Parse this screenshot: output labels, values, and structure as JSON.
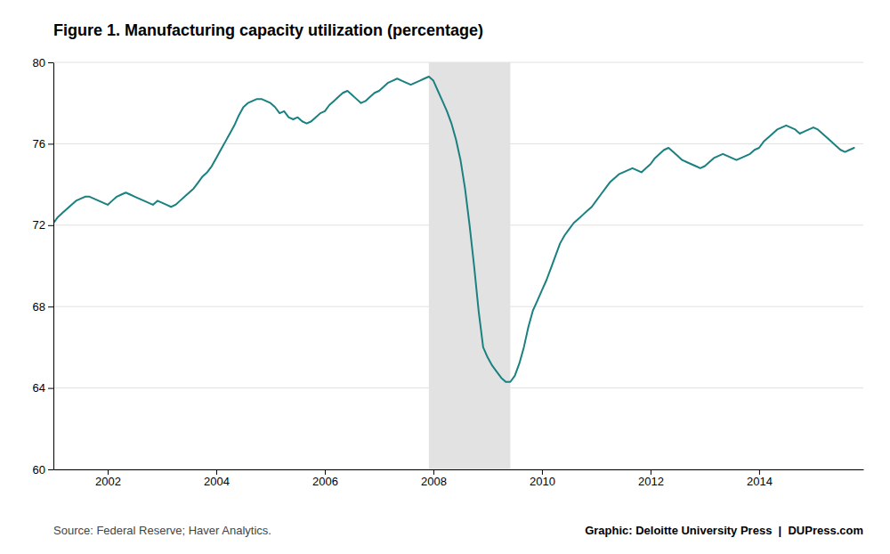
{
  "chart_data": {
    "type": "line",
    "title": "Figure 1. Manufacturing capacity utilization (percentage)",
    "annotations": [
      "Source: Federal Reserve; Haver Analytics.",
      "Graphic: Deloitte University Press  |  DUPress.com"
    ],
    "color": "#1a8080",
    "shading": {
      "x": [
        2007.917,
        2009.417
      ],
      "color": "#e2e2e2"
    },
    "xlim": [
      2001.0,
      2015.92
    ],
    "xticks": [
      2002,
      2004,
      2006,
      2008,
      2010,
      2012,
      2014
    ],
    "ylim": [
      60,
      80
    ],
    "yticks": [
      60,
      64,
      68,
      72,
      76,
      80
    ],
    "grid": true,
    "x": [
      2001.0,
      2001.083,
      2001.167,
      2001.25,
      2001.333,
      2001.417,
      2001.5,
      2001.583,
      2001.667,
      2001.75,
      2001.833,
      2001.917,
      2002.0,
      2002.083,
      2002.167,
      2002.25,
      2002.333,
      2002.417,
      2002.5,
      2002.583,
      2002.667,
      2002.75,
      2002.833,
      2002.917,
      2003.0,
      2003.083,
      2003.167,
      2003.25,
      2003.333,
      2003.417,
      2003.5,
      2003.583,
      2003.667,
      2003.75,
      2003.833,
      2003.917,
      2004.0,
      2004.083,
      2004.167,
      2004.25,
      2004.333,
      2004.417,
      2004.5,
      2004.583,
      2004.667,
      2004.75,
      2004.833,
      2004.917,
      2005.0,
      2005.083,
      2005.167,
      2005.25,
      2005.333,
      2005.417,
      2005.5,
      2005.583,
      2005.667,
      2005.75,
      2005.833,
      2005.917,
      2006.0,
      2006.083,
      2006.167,
      2006.25,
      2006.333,
      2006.417,
      2006.5,
      2006.583,
      2006.667,
      2006.75,
      2006.833,
      2006.917,
      2007.0,
      2007.083,
      2007.167,
      2007.25,
      2007.333,
      2007.417,
      2007.5,
      2007.583,
      2007.667,
      2007.75,
      2007.833,
      2007.917,
      2008.0,
      2008.083,
      2008.167,
      2008.25,
      2008.333,
      2008.417,
      2008.5,
      2008.583,
      2008.667,
      2008.75,
      2008.833,
      2008.917,
      2009.0,
      2009.083,
      2009.167,
      2009.25,
      2009.333,
      2009.417,
      2009.5,
      2009.583,
      2009.667,
      2009.75,
      2009.833,
      2009.917,
      2010.0,
      2010.083,
      2010.167,
      2010.25,
      2010.333,
      2010.417,
      2010.5,
      2010.583,
      2010.667,
      2010.75,
      2010.833,
      2010.917,
      2011.0,
      2011.083,
      2011.167,
      2011.25,
      2011.333,
      2011.417,
      2011.5,
      2011.583,
      2011.667,
      2011.75,
      2011.833,
      2011.917,
      2012.0,
      2012.083,
      2012.167,
      2012.25,
      2012.333,
      2012.417,
      2012.5,
      2012.583,
      2012.667,
      2012.75,
      2012.833,
      2012.917,
      2013.0,
      2013.083,
      2013.167,
      2013.25,
      2013.333,
      2013.417,
      2013.5,
      2013.583,
      2013.667,
      2013.75,
      2013.833,
      2013.917,
      2014.0,
      2014.083,
      2014.167,
      2014.25,
      2014.333,
      2014.417,
      2014.5,
      2014.583,
      2014.667,
      2014.75,
      2014.833,
      2014.917,
      2015.0,
      2015.083,
      2015.167,
      2015.25,
      2015.333,
      2015.417,
      2015.5,
      2015.583,
      2015.667,
      2015.75
    ],
    "values": [
      72.1,
      72.4,
      72.6,
      72.8,
      73.0,
      73.2,
      73.3,
      73.4,
      73.4,
      73.3,
      73.2,
      73.1,
      73.0,
      73.2,
      73.4,
      73.5,
      73.6,
      73.5,
      73.4,
      73.3,
      73.2,
      73.1,
      73.0,
      73.2,
      73.1,
      73.0,
      72.9,
      73.0,
      73.2,
      73.4,
      73.6,
      73.8,
      74.1,
      74.4,
      74.6,
      74.9,
      75.3,
      75.7,
      76.1,
      76.5,
      76.9,
      77.4,
      77.8,
      78.0,
      78.1,
      78.2,
      78.2,
      78.1,
      78.0,
      77.8,
      77.5,
      77.6,
      77.3,
      77.2,
      77.3,
      77.1,
      77.0,
      77.1,
      77.3,
      77.5,
      77.6,
      77.9,
      78.1,
      78.3,
      78.5,
      78.6,
      78.4,
      78.2,
      78.0,
      78.1,
      78.3,
      78.5,
      78.6,
      78.8,
      79.0,
      79.1,
      79.2,
      79.1,
      79.0,
      78.9,
      79.0,
      79.1,
      79.2,
      79.3,
      79.1,
      78.6,
      78.1,
      77.6,
      77.0,
      76.2,
      75.2,
      73.8,
      72.0,
      70.0,
      67.8,
      66.0,
      65.5,
      65.1,
      64.8,
      64.5,
      64.3,
      64.3,
      64.6,
      65.2,
      66.0,
      67.0,
      67.8,
      68.3,
      68.8,
      69.3,
      69.9,
      70.5,
      71.1,
      71.5,
      71.8,
      72.1,
      72.3,
      72.5,
      72.7,
      72.9,
      73.2,
      73.5,
      73.8,
      74.1,
      74.3,
      74.5,
      74.6,
      74.7,
      74.8,
      74.7,
      74.6,
      74.8,
      75.0,
      75.3,
      75.5,
      75.7,
      75.8,
      75.6,
      75.4,
      75.2,
      75.1,
      75.0,
      74.9,
      74.8,
      74.9,
      75.1,
      75.3,
      75.4,
      75.5,
      75.4,
      75.3,
      75.2,
      75.3,
      75.4,
      75.5,
      75.7,
      75.8,
      76.1,
      76.3,
      76.5,
      76.7,
      76.8,
      76.9,
      76.8,
      76.7,
      76.5,
      76.6,
      76.7,
      76.8,
      76.7,
      76.5,
      76.3,
      76.1,
      75.9,
      75.7,
      75.6,
      75.7,
      75.8
    ]
  }
}
